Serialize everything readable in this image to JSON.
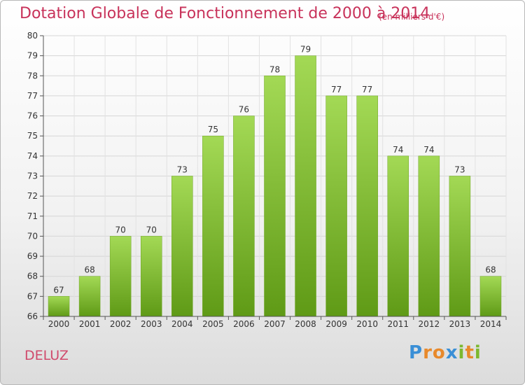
{
  "title": "Dotation Globale de Fonctionnement de 2000 à 2014",
  "subtitle": "(en milliers d'€)",
  "commune": "DELUZ",
  "logo": {
    "letters": [
      "P",
      "r",
      "o",
      "x",
      "i",
      "t",
      "i"
    ],
    "colors": [
      "#3a8fd6",
      "#e8892b",
      "#e8892b",
      "#3a8fd6",
      "#7cb82f",
      "#e8892b",
      "#7cb82f"
    ]
  },
  "colors": {
    "bar_top": "#a3d955",
    "bar_bottom": "#5f9a16",
    "title": "#c8325a"
  },
  "chart_data": {
    "type": "bar",
    "categories": [
      "2000",
      "2001",
      "2002",
      "2003",
      "2004",
      "2005",
      "2006",
      "2007",
      "2008",
      "2009",
      "2010",
      "2011",
      "2012",
      "2013",
      "2014"
    ],
    "values": [
      67,
      68,
      70,
      70,
      73,
      75,
      76,
      78,
      79,
      77,
      77,
      74,
      74,
      73,
      68
    ],
    "ylim": [
      66,
      80
    ],
    "yticks": [
      66,
      67,
      68,
      69,
      70,
      71,
      72,
      73,
      74,
      75,
      76,
      77,
      78,
      79,
      80
    ],
    "grid": true
  }
}
